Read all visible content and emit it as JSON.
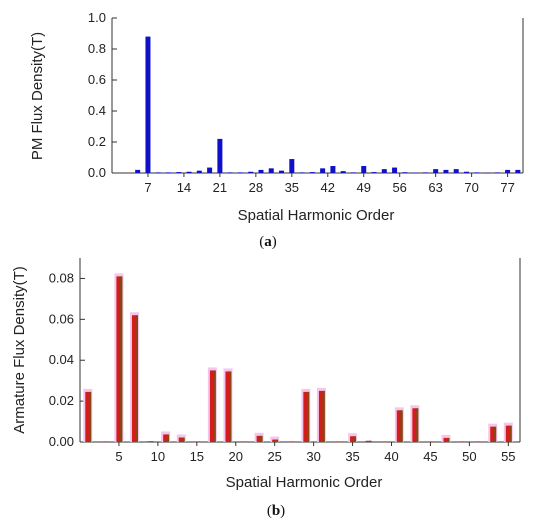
{
  "chart_data": [
    {
      "type": "bar",
      "xlabel": "Spatial Harmonic Order",
      "ylabel": "PM Flux Density(T)",
      "caption_prefix": "(",
      "caption_letter": "a",
      "caption_suffix": ")",
      "ylim": [
        0,
        1.0
      ],
      "yticks": [
        0.0,
        0.2,
        0.4,
        0.6,
        0.8,
        1.0
      ],
      "ytick_labels": [
        "0.0",
        "0.2",
        "0.4",
        "0.6",
        "0.8",
        "1.0"
      ],
      "xlim": [
        0,
        80
      ],
      "xticks": [
        7,
        14,
        21,
        28,
        35,
        42,
        49,
        56,
        63,
        70,
        77
      ],
      "xtick_labels": [
        "7",
        "14",
        "21",
        "28",
        "35",
        "42",
        "49",
        "56",
        "63",
        "70",
        "77"
      ],
      "color": "#1010c8",
      "bars": [
        {
          "x": 5,
          "y": 0.02
        },
        {
          "x": 7,
          "y": 0.88
        },
        {
          "x": 9,
          "y": 0.004
        },
        {
          "x": 11,
          "y": 0.004
        },
        {
          "x": 13,
          "y": 0.006
        },
        {
          "x": 15,
          "y": 0.008
        },
        {
          "x": 17,
          "y": 0.015
        },
        {
          "x": 19,
          "y": 0.035
        },
        {
          "x": 21,
          "y": 0.22
        },
        {
          "x": 23,
          "y": 0.004
        },
        {
          "x": 25,
          "y": 0.004
        },
        {
          "x": 27,
          "y": 0.008
        },
        {
          "x": 29,
          "y": 0.02
        },
        {
          "x": 31,
          "y": 0.03
        },
        {
          "x": 33,
          "y": 0.015
        },
        {
          "x": 35,
          "y": 0.09
        },
        {
          "x": 37,
          "y": 0.004
        },
        {
          "x": 39,
          "y": 0.006
        },
        {
          "x": 41,
          "y": 0.03
        },
        {
          "x": 43,
          "y": 0.045
        },
        {
          "x": 45,
          "y": 0.012
        },
        {
          "x": 47,
          "y": 0.004
        },
        {
          "x": 49,
          "y": 0.045
        },
        {
          "x": 51,
          "y": 0.006
        },
        {
          "x": 53,
          "y": 0.025
        },
        {
          "x": 55,
          "y": 0.035
        },
        {
          "x": 57,
          "y": 0.005
        },
        {
          "x": 59,
          "y": 0.003
        },
        {
          "x": 61,
          "y": 0.004
        },
        {
          "x": 63,
          "y": 0.025
        },
        {
          "x": 65,
          "y": 0.02
        },
        {
          "x": 67,
          "y": 0.025
        },
        {
          "x": 69,
          "y": 0.008
        },
        {
          "x": 71,
          "y": 0.004
        },
        {
          "x": 73,
          "y": 0.003
        },
        {
          "x": 75,
          "y": 0.004
        },
        {
          "x": 77,
          "y": 0.02
        },
        {
          "x": 79,
          "y": 0.02
        }
      ]
    },
    {
      "type": "bar",
      "xlabel": "Spatial Harmonic Order",
      "ylabel": "Armature Flux Density(T)",
      "caption_prefix": "(",
      "caption_letter": "b",
      "caption_suffix": ")",
      "ylim": [
        0,
        0.09
      ],
      "yticks": [
        0.0,
        0.02,
        0.04,
        0.06,
        0.08
      ],
      "ytick_labels": [
        "0.00",
        "0.02",
        "0.04",
        "0.06",
        "0.08"
      ],
      "xlim": [
        0,
        56.5
      ],
      "xticks": [
        5,
        10,
        15,
        20,
        25,
        30,
        35,
        40,
        45,
        50,
        55
      ],
      "xtick_labels": [
        "5",
        "10",
        "15",
        "20",
        "25",
        "30",
        "35",
        "40",
        "45",
        "50",
        "55"
      ],
      "colors": {
        "front": "#d41c1c",
        "back": "#8b4513",
        "halo": "#f4c6ee"
      },
      "series": [
        {
          "values_front": [
            {
              "x": 1,
              "y": 0.0245
            },
            {
              "x": 3,
              "y": 0.0003
            },
            {
              "x": 5,
              "y": 0.081
            },
            {
              "x": 7,
              "y": 0.062
            },
            {
              "x": 9,
              "y": 0.0004
            },
            {
              "x": 11,
              "y": 0.0037
            },
            {
              "x": 13,
              "y": 0.0022
            },
            {
              "x": 15,
              "y": 0.0003
            },
            {
              "x": 17,
              "y": 0.035
            },
            {
              "x": 19,
              "y": 0.0345
            },
            {
              "x": 21,
              "y": 0.0003
            },
            {
              "x": 23,
              "y": 0.003
            },
            {
              "x": 25,
              "y": 0.0012
            },
            {
              "x": 27,
              "y": 0.0003
            },
            {
              "x": 29,
              "y": 0.0245
            },
            {
              "x": 31,
              "y": 0.025
            },
            {
              "x": 33,
              "y": 0.0003
            },
            {
              "x": 35,
              "y": 0.0028
            },
            {
              "x": 37,
              "y": 0.0006
            },
            {
              "x": 39,
              "y": 0.0003
            },
            {
              "x": 41,
              "y": 0.0155
            },
            {
              "x": 43,
              "y": 0.0165
            },
            {
              "x": 45,
              "y": 0.0003
            },
            {
              "x": 47,
              "y": 0.002
            },
            {
              "x": 49,
              "y": 0.0003
            },
            {
              "x": 51,
              "y": 0.0003
            },
            {
              "x": 53,
              "y": 0.0075
            },
            {
              "x": 55,
              "y": 0.008
            }
          ]
        }
      ]
    }
  ]
}
